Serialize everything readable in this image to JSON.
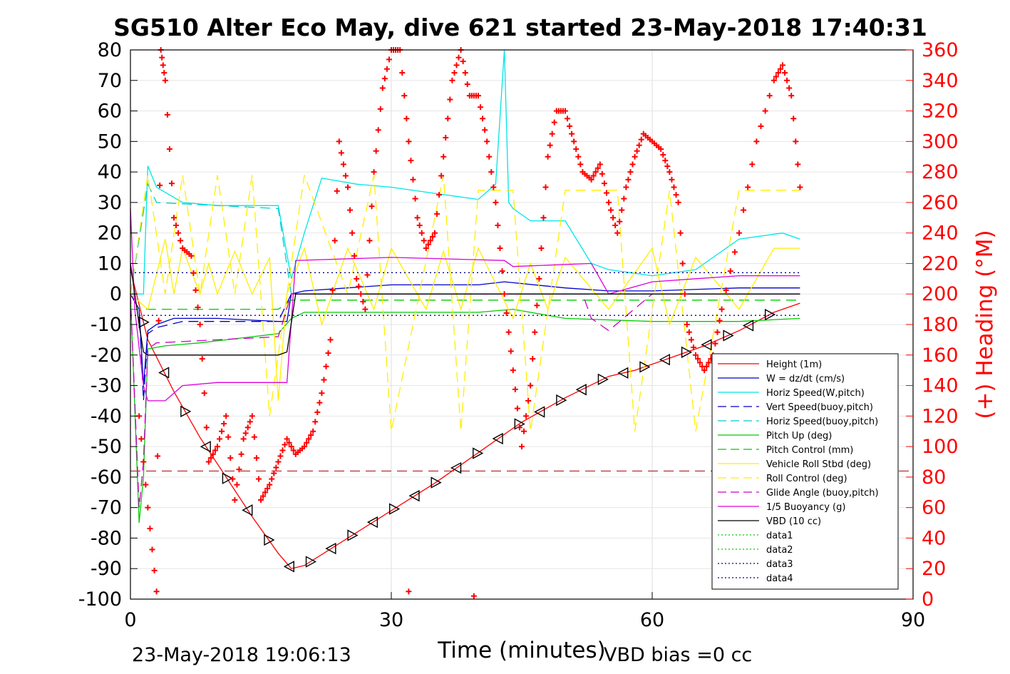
{
  "chart_data": {
    "type": "line",
    "title": "SG510 Alter Eco May, dive 621 started 23-May-2018 17:40:31",
    "xlabel": "Time (minutes)",
    "ylabel_right": "(+) Heading (°M)",
    "xlim": [
      0,
      90
    ],
    "ylim": [
      -100,
      80
    ],
    "ylim_right": [
      0,
      360
    ],
    "x_ticks": [
      0,
      30,
      60,
      90
    ],
    "y_ticks": [
      80,
      70,
      60,
      50,
      40,
      30,
      20,
      10,
      0,
      -10,
      -20,
      -30,
      -40,
      -50,
      -60,
      -70,
      -80,
      -90,
      -100
    ],
    "y_ticks_right": [
      360,
      340,
      320,
      300,
      280,
      260,
      240,
      220,
      200,
      180,
      160,
      140,
      120,
      100,
      80,
      60,
      40,
      20,
      0
    ],
    "grid": true,
    "legend_position": "bottom-right",
    "footer_left": "23-May-2018 19:06:13",
    "footer_right": "VBD bias =0 cc",
    "colors": {
      "height": "#ff0000",
      "w": "#0000cc",
      "horiz": "#00e5e5",
      "vert_buoy": "#0000cc",
      "horiz_buoy": "#00cccc",
      "pitch": "#00cc00",
      "pitch_ctrl": "#00cc00",
      "roll": "#ffee00",
      "roll_ctrl": "#ffee00",
      "glide": "#cc00cc",
      "buoy": "#dd00dd",
      "vbd": "#000000",
      "heading": "#ff0000",
      "axis_right": "#ff0000"
    },
    "series": [
      {
        "name": "Height (1m)",
        "style": "solid",
        "color": "#ff0000",
        "x": [
          0,
          2,
          5,
          8,
          11,
          14,
          17,
          18.5,
          20,
          25,
          30,
          35,
          40,
          45,
          50,
          55,
          58,
          62,
          66,
          70,
          74,
          77
        ],
        "y": [
          8,
          -15,
          -32,
          -47,
          -60,
          -73,
          -85,
          -90,
          -89,
          -80,
          -71,
          -62,
          -52,
          -42,
          -34,
          -27,
          -25,
          -21,
          -17,
          -12,
          -6,
          -3
        ]
      },
      {
        "name": "W = dz/dt (cm/s)",
        "style": "solid",
        "color": "#0000cc",
        "x": [
          0,
          1,
          1.5,
          2,
          3,
          5,
          10,
          17,
          18,
          18.5,
          20,
          30,
          40,
          43,
          50,
          55,
          60,
          70,
          77
        ],
        "y": [
          0,
          -5,
          -30,
          -12,
          -10,
          -8,
          -8,
          -9,
          -9,
          0,
          1,
          3,
          3,
          4,
          2,
          1,
          1,
          2,
          2
        ]
      },
      {
        "name": "Horiz Speed(W,pitch)",
        "style": "solid",
        "color": "#00e5e5",
        "x": [
          0,
          1.5,
          2,
          3,
          6,
          10,
          17,
          18.5,
          20,
          22,
          26,
          30,
          35,
          40,
          42,
          43,
          43.5,
          44,
          46,
          50,
          53,
          55,
          60,
          65,
          70,
          75,
          77
        ],
        "y": [
          0,
          0,
          42,
          35,
          30,
          29,
          29,
          5,
          20,
          38,
          36,
          35,
          33,
          31,
          36,
          80,
          30,
          28,
          24,
          24,
          10,
          8,
          6,
          8,
          18,
          20,
          18
        ]
      },
      {
        "name": "Vert Speed(buoy,pitch)",
        "style": "dash",
        "color": "#0000cc",
        "x": [
          0,
          1,
          1.5,
          2,
          3,
          6,
          17,
          18.5,
          20,
          40,
          60,
          77
        ],
        "y": [
          0,
          -5,
          -35,
          -13,
          -11,
          -9,
          -9,
          0,
          0,
          0,
          0,
          0
        ]
      },
      {
        "name": "Horiz Speed(buoy,pitch)",
        "style": "dash",
        "color": "#00cccc",
        "x": [
          0,
          2,
          3,
          10,
          17,
          18.5,
          20,
          77
        ],
        "y": [
          0,
          36,
          30,
          29,
          28,
          0,
          0,
          0
        ]
      },
      {
        "name": "Pitch Up (deg)",
        "style": "solid",
        "color": "#00cc00",
        "x": [
          0,
          1,
          1.5,
          2,
          4,
          8,
          14,
          17,
          18.5,
          20,
          30,
          40,
          44,
          50,
          60,
          70,
          77
        ],
        "y": [
          0,
          -75,
          -60,
          -18,
          -17,
          -16,
          -14,
          -13,
          -8,
          -6,
          -6,
          -6,
          -5,
          -8,
          -9,
          -9,
          -8
        ]
      },
      {
        "name": "Pitch Control (mm)",
        "style": "dash",
        "color": "#00cc00",
        "x": [
          0,
          2,
          17,
          18.5,
          77
        ],
        "y": [
          -5,
          -5,
          -5,
          -2,
          -2
        ]
      },
      {
        "name": "Vehicle Roll Stbd (deg)",
        "style": "solid",
        "color": "#ffee00",
        "x": [
          0,
          2,
          4,
          5,
          6,
          8,
          9,
          10,
          12,
          14,
          16,
          17,
          18,
          20,
          22,
          25,
          28,
          30,
          34,
          36,
          38,
          40,
          44,
          46,
          48,
          50,
          55,
          60,
          62,
          65,
          70,
          74,
          77
        ],
        "y": [
          0,
          -5,
          18,
          0,
          15,
          0,
          10,
          0,
          14,
          0,
          12,
          -35,
          0,
          15,
          -10,
          15,
          -5,
          15,
          -5,
          14,
          -5,
          15,
          -8,
          10,
          -5,
          12,
          -5,
          15,
          -10,
          12,
          -5,
          15,
          15
        ]
      },
      {
        "name": "Roll Control (deg)",
        "style": "dash",
        "color": "#ffee00",
        "x": [
          0,
          2,
          4,
          6,
          8,
          10,
          12,
          14,
          16,
          18,
          20,
          25,
          28,
          30,
          36,
          38,
          40,
          44,
          46,
          50,
          56,
          58,
          62,
          65,
          70,
          74,
          77
        ],
        "y": [
          0,
          39,
          0,
          39,
          0,
          39,
          0,
          39,
          -40,
          0,
          39,
          0,
          39,
          -45,
          39,
          -45,
          34,
          34,
          -45,
          34,
          34,
          -45,
          34,
          -45,
          34,
          34,
          34
        ]
      },
      {
        "name": "Glide Angle (buoy,pitch)",
        "style": "dash",
        "color": "#cc00cc",
        "x": [
          0,
          1,
          1.5,
          2,
          3,
          10,
          17,
          18.5,
          20,
          40,
          52,
          53,
          55,
          60,
          77
        ],
        "y": [
          0,
          -70,
          -55,
          -18,
          -16,
          -15,
          -14,
          0,
          0,
          0,
          0,
          -8,
          -12,
          0,
          0
        ]
      },
      {
        "name": "1/5 Buoyancy (g)",
        "style": "solid",
        "color": "#dd00dd",
        "x": [
          0,
          0.5,
          1.5,
          2,
          4,
          6,
          10,
          17,
          18,
          19,
          30,
          43,
          44,
          53,
          55,
          60,
          65,
          70,
          77
        ],
        "y": [
          28,
          -5,
          -30,
          -35,
          -35,
          -30,
          -29,
          -29,
          -29,
          11,
          12,
          11,
          9,
          10,
          0,
          4,
          5,
          6,
          6
        ]
      },
      {
        "name": "VBD (10 cc)",
        "style": "solid",
        "color": "#000000",
        "x": [
          0,
          1,
          1.5,
          2,
          17,
          18,
          19,
          20,
          77
        ],
        "y": [
          10,
          -10,
          -19,
          -20,
          -20,
          -19,
          0,
          0,
          0
        ]
      },
      {
        "name": "data1",
        "style": "dot",
        "color": "#00cc00",
        "x": [],
        "y": []
      },
      {
        "name": "data2",
        "style": "dot",
        "color": "#00cc00",
        "x": [],
        "y": []
      },
      {
        "name": "data3",
        "style": "dot",
        "color": "#000088",
        "x": [
          0,
          77
        ],
        "y": [
          7,
          7
        ]
      },
      {
        "name": "data4",
        "style": "dot",
        "color": "#000088",
        "x": [
          0,
          77
        ],
        "y": [
          -7,
          -7
        ]
      }
    ],
    "hline_dash_red": -58,
    "heading_points": {
      "axis": "right",
      "x": [
        1,
        2,
        3,
        3.5,
        4,
        5,
        6,
        7,
        8,
        9,
        10,
        11,
        12,
        13,
        14,
        15,
        16,
        17,
        18,
        19,
        20,
        21,
        22,
        23,
        24,
        25,
        26,
        27,
        28,
        29,
        30,
        31,
        32,
        33,
        34,
        35,
        36,
        37,
        38,
        39,
        40,
        41,
        42,
        43,
        44,
        45,
        46,
        47,
        48,
        49,
        50,
        51,
        52,
        53,
        54,
        55,
        56,
        57,
        58,
        59,
        60,
        61,
        62,
        63,
        64,
        65,
        66,
        67,
        68,
        70,
        72,
        74,
        75,
        76,
        77
      ],
      "y": [
        120,
        60,
        5,
        360,
        340,
        250,
        230,
        225,
        180,
        90,
        100,
        120,
        65,
        105,
        120,
        65,
        75,
        90,
        105,
        95,
        100,
        110,
        135,
        170,
        300,
        270,
        210,
        190,
        280,
        335,
        360,
        360,
        300,
        250,
        230,
        240,
        290,
        340,
        360,
        330,
        330,
        300,
        260,
        200,
        150,
        100,
        140,
        210,
        290,
        320,
        320,
        300,
        280,
        275,
        285,
        260,
        240,
        270,
        290,
        305,
        300,
        295,
        280,
        260,
        180,
        160,
        150,
        160,
        190,
        240,
        300,
        340,
        350,
        330,
        270
      ]
    },
    "heading_extra": {
      "x": [
        32,
        39.5
      ],
      "y": [
        5,
        2
      ]
    },
    "triangle_markers_on": "Height (1m)"
  }
}
